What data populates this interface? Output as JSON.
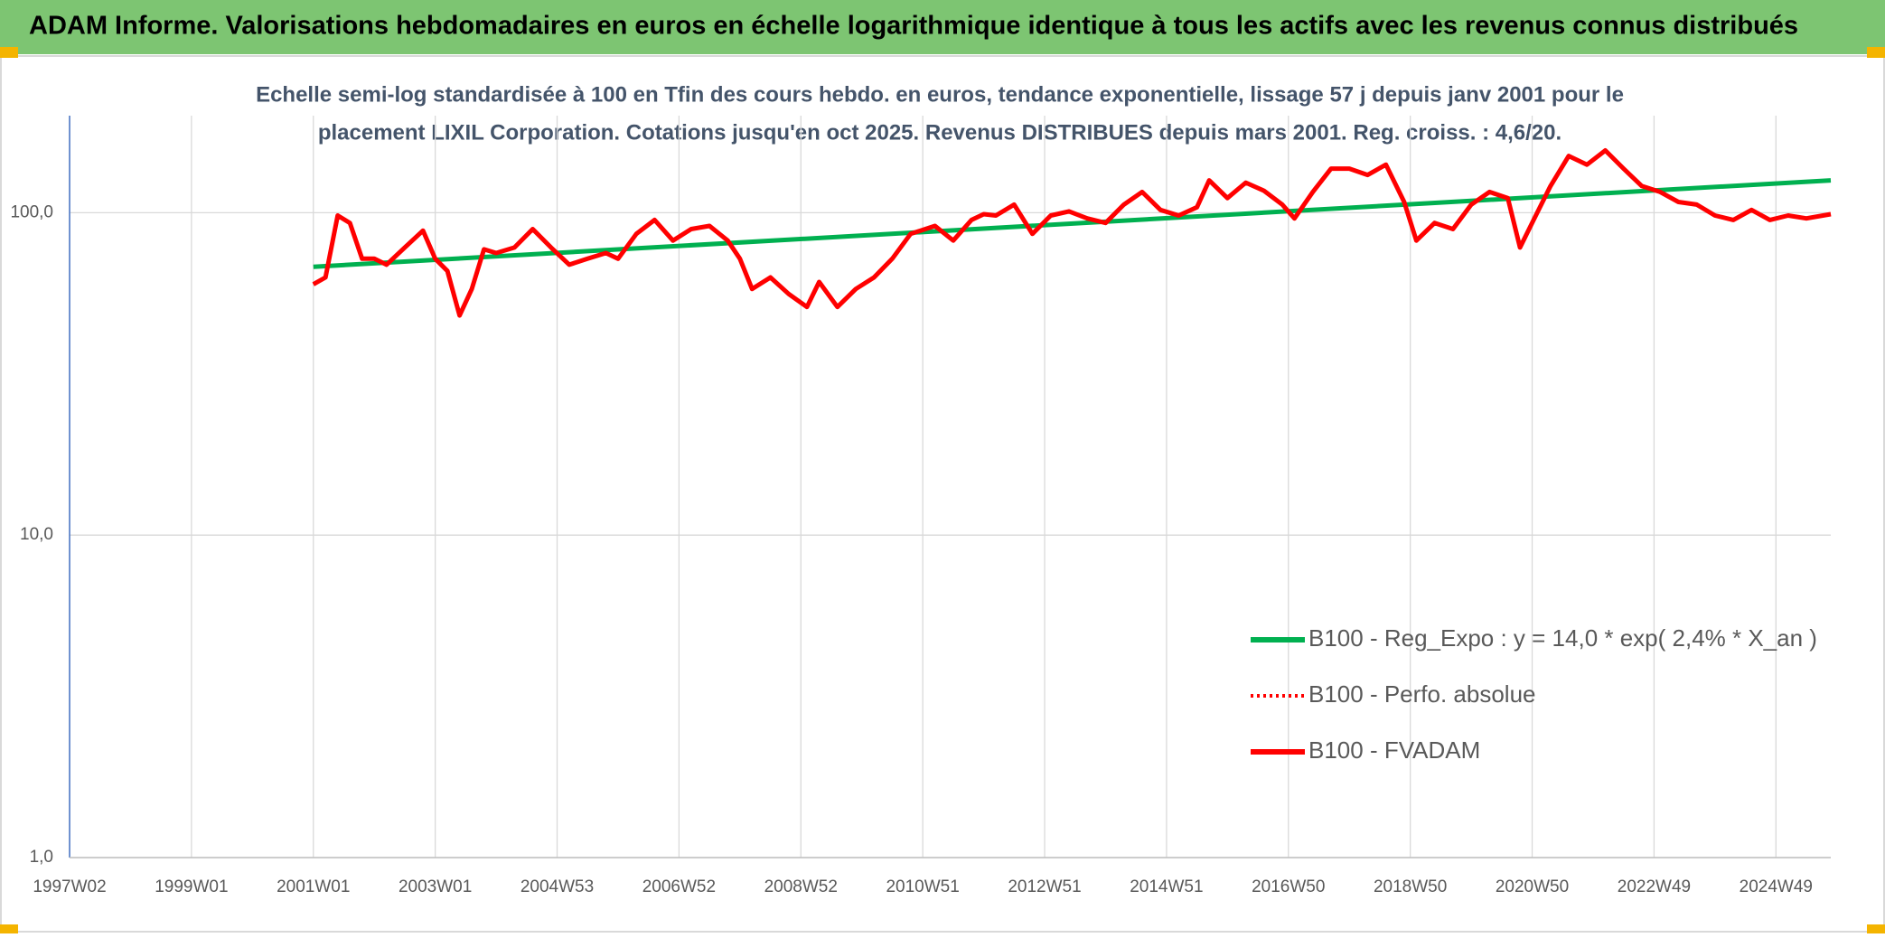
{
  "chart_data": {
    "type": "line",
    "title": "ADAM Informe. Valorisations hebdomadaires en euros en échelle logarithmique identique à tous les actifs avec les revenus connus distribués",
    "subtitle": [
      "Echelle semi-log standardisée à 100 en Tfin des cours hebdo. en euros, tendance exponentielle, lissage 57 j depuis janv 2001 pour le",
      "placement LIXIL Corporation. Cotations jusqu'en oct 2025. Revenus DISTRIBUES depuis mars 2001. Reg. croiss. : 4,6/20."
    ],
    "log_y": true,
    "grid": true,
    "legend": "right",
    "xlim": [
      1997.0,
      2025.9
    ],
    "xticks": [
      {
        "value": 1997.0,
        "label": "1997W02"
      },
      {
        "value": 1999.0,
        "label": "1999W01"
      },
      {
        "value": 2001.0,
        "label": "2001W01"
      },
      {
        "value": 2003.0,
        "label": "2003W01"
      },
      {
        "value": 2005.0,
        "label": "2004W53"
      },
      {
        "value": 2007.0,
        "label": "2006W52"
      },
      {
        "value": 2009.0,
        "label": "2008W52"
      },
      {
        "value": 2011.0,
        "label": "2010W51"
      },
      {
        "value": 2013.0,
        "label": "2012W51"
      },
      {
        "value": 2015.0,
        "label": "2014W51"
      },
      {
        "value": 2017.0,
        "label": "2016W50"
      },
      {
        "value": 2019.0,
        "label": "2018W50"
      },
      {
        "value": 2021.0,
        "label": "2020W50"
      },
      {
        "value": 2023.0,
        "label": "2022W49"
      },
      {
        "value": 2025.0,
        "label": "2024W49"
      }
    ],
    "ylim": [
      1,
      200
    ],
    "yticks": [
      {
        "value": 1,
        "label": "1,0"
      },
      {
        "value": 10,
        "label": "10,0"
      },
      {
        "value": 100,
        "label": "100,0"
      }
    ],
    "series": [
      {
        "name": "B100 - Reg_Expo : y = 14,0 * exp( 2,4% *  X_an )",
        "color": "#00b050",
        "style": "solid",
        "x": [
          2001.0,
          2025.9
        ],
        "values": [
          68,
          126
        ]
      },
      {
        "name": "B100 - Perfo. absolue",
        "color": "#ff0000",
        "style": "dotted",
        "x": [
          2001.0,
          2001.2,
          2001.4,
          2001.6,
          2001.8,
          2002.0,
          2002.2,
          2002.5,
          2002.8,
          2003.0,
          2003.2,
          2003.4,
          2003.6,
          2003.8,
          2004.0,
          2004.3,
          2004.6,
          2004.9,
          2005.2,
          2005.5,
          2005.8,
          2006.0,
          2006.3,
          2006.6,
          2006.9,
          2007.2,
          2007.5,
          2007.8,
          2008.0,
          2008.2,
          2008.5,
          2008.8,
          2009.1,
          2009.3,
          2009.6,
          2009.9,
          2010.2,
          2010.5,
          2010.8,
          2011.2,
          2011.5,
          2011.8,
          2012.0,
          2012.2,
          2012.5,
          2012.8,
          2013.1,
          2013.4,
          2013.7,
          2014.0,
          2014.3,
          2014.6,
          2014.9,
          2015.2,
          2015.5,
          2015.7,
          2016.0,
          2016.3,
          2016.6,
          2016.9,
          2017.1,
          2017.4,
          2017.7,
          2018.0,
          2018.3,
          2018.6,
          2018.9,
          2019.1,
          2019.4,
          2019.7,
          2020.0,
          2020.3,
          2020.6,
          2020.8,
          2021.0,
          2021.3,
          2021.6,
          2021.9,
          2022.2,
          2022.5,
          2022.8,
          2023.1,
          2023.4,
          2023.7,
          2024.0,
          2024.3,
          2024.6,
          2024.9,
          2025.2,
          2025.5,
          2025.9
        ],
        "values": [
          60,
          63,
          98,
          93,
          72,
          72,
          69,
          78,
          88,
          72,
          66,
          48,
          58,
          77,
          75,
          78,
          89,
          78,
          69,
          72,
          75,
          72,
          86,
          95,
          82,
          89,
          91,
          82,
          72,
          58,
          63,
          56,
          51,
          61,
          51,
          58,
          63,
          72,
          86,
          91,
          82,
          95,
          99,
          98,
          106,
          86,
          98,
          101,
          96,
          93,
          106,
          116,
          102,
          98,
          104,
          126,
          111,
          124,
          117,
          106,
          96,
          116,
          137,
          137,
          131,
          141,
          108,
          82,
          93,
          89,
          106,
          116,
          111,
          78,
          93,
          121,
          150,
          141,
          156,
          137,
          121,
          116,
          108,
          106,
          98,
          95,
          102,
          95,
          98,
          96,
          99
        ]
      },
      {
        "name": "B100 - FVADAM",
        "color": "#ff0000",
        "style": "solid",
        "x": [
          2001.0,
          2001.2,
          2001.4,
          2001.6,
          2001.8,
          2002.0,
          2002.2,
          2002.5,
          2002.8,
          2003.0,
          2003.2,
          2003.4,
          2003.6,
          2003.8,
          2004.0,
          2004.3,
          2004.6,
          2004.9,
          2005.2,
          2005.5,
          2005.8,
          2006.0,
          2006.3,
          2006.6,
          2006.9,
          2007.2,
          2007.5,
          2007.8,
          2008.0,
          2008.2,
          2008.5,
          2008.8,
          2009.1,
          2009.3,
          2009.6,
          2009.9,
          2010.2,
          2010.5,
          2010.8,
          2011.2,
          2011.5,
          2011.8,
          2012.0,
          2012.2,
          2012.5,
          2012.8,
          2013.1,
          2013.4,
          2013.7,
          2014.0,
          2014.3,
          2014.6,
          2014.9,
          2015.2,
          2015.5,
          2015.7,
          2016.0,
          2016.3,
          2016.6,
          2016.9,
          2017.1,
          2017.4,
          2017.7,
          2018.0,
          2018.3,
          2018.6,
          2018.9,
          2019.1,
          2019.4,
          2019.7,
          2020.0,
          2020.3,
          2020.6,
          2020.8,
          2021.0,
          2021.3,
          2021.6,
          2021.9,
          2022.2,
          2022.5,
          2022.8,
          2023.1,
          2023.4,
          2023.7,
          2024.0,
          2024.3,
          2024.6,
          2024.9,
          2025.2,
          2025.5,
          2025.9
        ],
        "values": [
          60,
          63,
          98,
          93,
          72,
          72,
          69,
          78,
          88,
          72,
          66,
          48,
          58,
          77,
          75,
          78,
          89,
          78,
          69,
          72,
          75,
          72,
          86,
          95,
          82,
          89,
          91,
          82,
          72,
          58,
          63,
          56,
          51,
          61,
          51,
          58,
          63,
          72,
          86,
          91,
          82,
          95,
          99,
          98,
          106,
          86,
          98,
          101,
          96,
          93,
          106,
          116,
          102,
          98,
          104,
          126,
          111,
          124,
          117,
          106,
          96,
          116,
          137,
          137,
          131,
          141,
          108,
          82,
          93,
          89,
          106,
          116,
          111,
          78,
          93,
          121,
          150,
          141,
          156,
          137,
          121,
          116,
          108,
          106,
          98,
          95,
          102,
          95,
          98,
          96,
          99
        ]
      }
    ]
  }
}
